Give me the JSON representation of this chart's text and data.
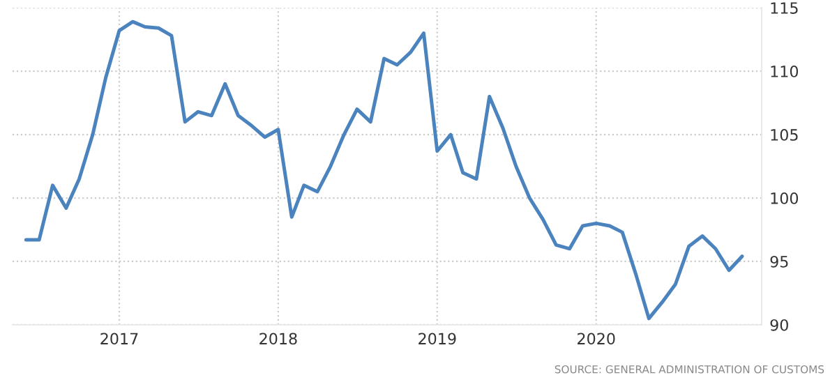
{
  "chart_data": {
    "type": "line",
    "x": [
      "2016-06",
      "2016-07",
      "2016-08",
      "2016-09",
      "2016-10",
      "2016-11",
      "2016-12",
      "2017-01",
      "2017-02",
      "2017-03",
      "2017-04",
      "2017-05",
      "2017-06",
      "2017-07",
      "2017-08",
      "2017-09",
      "2017-10",
      "2017-11",
      "2017-12",
      "2018-01",
      "2018-02",
      "2018-03",
      "2018-04",
      "2018-05",
      "2018-06",
      "2018-07",
      "2018-08",
      "2018-09",
      "2018-10",
      "2018-11",
      "2018-12",
      "2019-01",
      "2019-02",
      "2019-03",
      "2019-04",
      "2019-05",
      "2019-06",
      "2019-07",
      "2019-08",
      "2019-09",
      "2019-10",
      "2019-11",
      "2019-12",
      "2020-01",
      "2020-02",
      "2020-03",
      "2020-04",
      "2020-05",
      "2020-06",
      "2020-07",
      "2020-08",
      "2020-09",
      "2020-10",
      "2020-11",
      "2020-12"
    ],
    "series": [
      {
        "color": "#4a83bd",
        "values": [
          96.7,
          96.7,
          101,
          99.2,
          101.5,
          105,
          109.5,
          113.2,
          113.9,
          113.5,
          113.4,
          112.8,
          106,
          106.8,
          106.5,
          109,
          106.5,
          105.7,
          104.8,
          105.4,
          98.5,
          101,
          100.5,
          102.5,
          105,
          107,
          106,
          111,
          110.5,
          111.5,
          113,
          103.7,
          105,
          102,
          101.5,
          108,
          105.5,
          102.5,
          100,
          98.3,
          96.3,
          96,
          97.8,
          98,
          97.8,
          97.3,
          94,
          90.5,
          91.8,
          93.2,
          96.2,
          97,
          96,
          94.3,
          95.4
        ]
      }
    ],
    "xlim": [
      "2016-05-01",
      "2021-01-15"
    ],
    "xticks": [
      {
        "value": "2017-01-01",
        "label": "2017"
      },
      {
        "value": "2018-01-01",
        "label": "2018"
      },
      {
        "value": "2019-01-01",
        "label": "2019"
      },
      {
        "value": "2020-01-01",
        "label": "2020"
      }
    ],
    "ylim": [
      90,
      115
    ],
    "yticks": [
      90,
      95,
      100,
      105,
      110,
      115
    ],
    "grid": true,
    "marker": "none",
    "line_style": "solid",
    "annotations": [
      "SOURCE: GENERAL ADMINISTRATION OF CUSTOMS"
    ]
  }
}
